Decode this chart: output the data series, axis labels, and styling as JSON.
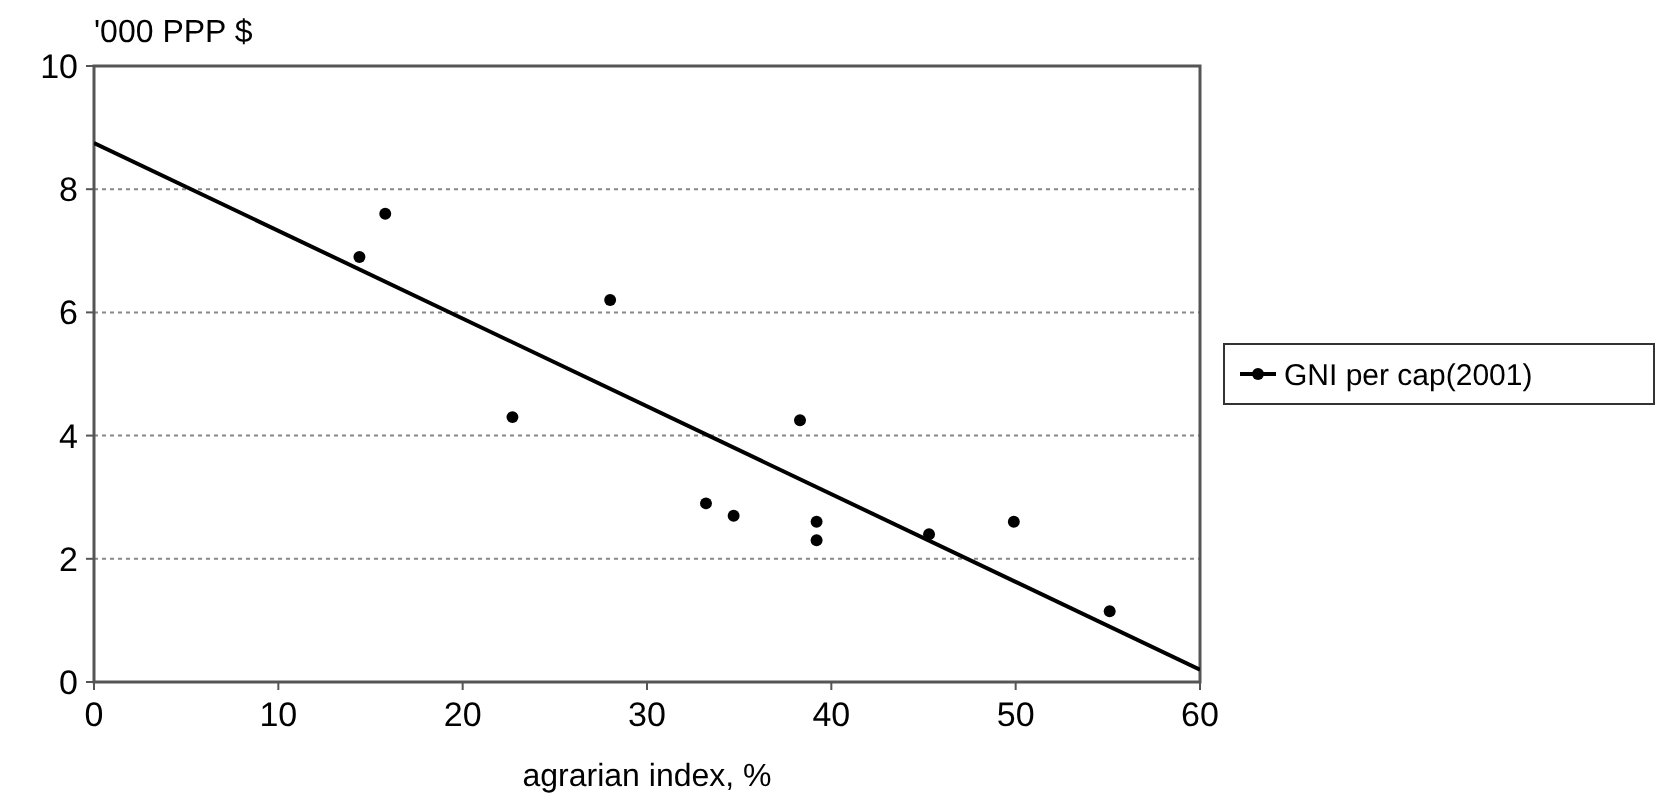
{
  "chart_data": {
    "type": "scatter",
    "xlabel": "agrarian index, %",
    "ylabel": "'000 PPP $",
    "xlim": [
      0,
      60
    ],
    "xticks": [
      0,
      10,
      20,
      30,
      40,
      50,
      60
    ],
    "ylim": [
      0,
      10
    ],
    "yticks": [
      0,
      2,
      4,
      6,
      8,
      10
    ],
    "grid": "y",
    "legend": "right",
    "marker": "circle",
    "series": [
      {
        "name": "GNI per cap(2001)",
        "color": "#000000",
        "x": [
          14.4,
          15.8,
          22.7,
          28.0,
          33.2,
          34.7,
          38.3,
          39.2,
          39.2,
          45.3,
          49.9,
          55.1
        ],
        "values": [
          6.9,
          7.6,
          4.3,
          6.2,
          2.9,
          2.7,
          4.25,
          2.6,
          2.3,
          2.4,
          2.6,
          1.15
        ]
      },
      {
        "type": "line",
        "color": "#000000",
        "x": [
          0,
          60
        ],
        "values": [
          8.75,
          0.2
        ],
        "marker": "none"
      }
    ]
  }
}
